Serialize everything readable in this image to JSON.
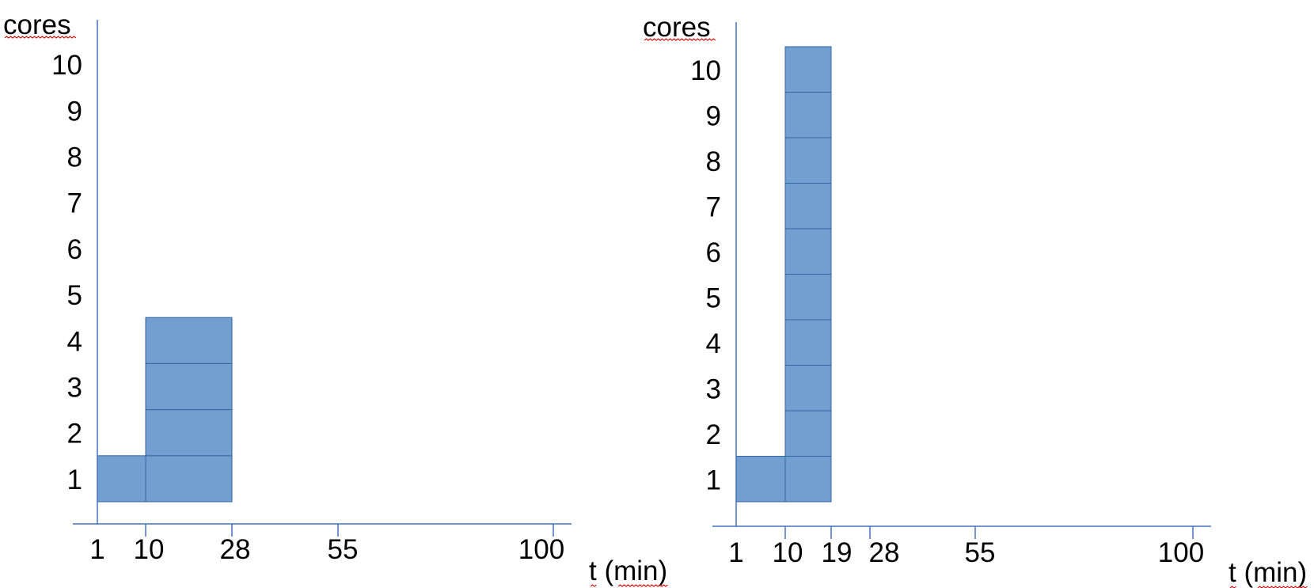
{
  "colors": {
    "axis": "#4472c4",
    "block_fill": "#729fcf",
    "block_stroke": "#3465a4",
    "text": "#000000",
    "spell_underline": "#cc0000"
  },
  "chart_data": [
    {
      "type": "diagram",
      "y_axis_title": "cores",
      "x_axis_title": "t (min)",
      "y_ticks": [
        "1",
        "2",
        "3",
        "4",
        "5",
        "6",
        "7",
        "8",
        "9",
        "10"
      ],
      "x_ticks": [
        "1",
        "10",
        "28",
        "55",
        "100"
      ],
      "blocks": [
        {
          "t_start": 1,
          "t_end": 10,
          "core_start": 0,
          "core_end": 1
        },
        {
          "t_start": 10,
          "t_end": 28,
          "core_start": 0,
          "core_end": 1
        },
        {
          "t_start": 10,
          "t_end": 28,
          "core_start": 1,
          "core_end": 2
        },
        {
          "t_start": 10,
          "t_end": 28,
          "core_start": 2,
          "core_end": 3
        },
        {
          "t_start": 10,
          "t_end": 28,
          "core_start": 3,
          "core_end": 4
        }
      ]
    },
    {
      "type": "diagram",
      "y_axis_title": "cores",
      "x_axis_title": "t (min)",
      "y_ticks": [
        "1",
        "2",
        "3",
        "4",
        "5",
        "6",
        "7",
        "8",
        "9",
        "10"
      ],
      "x_ticks": [
        "1",
        "10",
        "19",
        "28",
        "55",
        "100"
      ],
      "blocks": [
        {
          "t_start": 1,
          "t_end": 10,
          "core_start": 0,
          "core_end": 1
        },
        {
          "t_start": 10,
          "t_end": 19,
          "core_start": 0,
          "core_end": 1
        },
        {
          "t_start": 10,
          "t_end": 19,
          "core_start": 1,
          "core_end": 2
        },
        {
          "t_start": 10,
          "t_end": 19,
          "core_start": 2,
          "core_end": 3
        },
        {
          "t_start": 10,
          "t_end": 19,
          "core_start": 3,
          "core_end": 4
        },
        {
          "t_start": 10,
          "t_end": 19,
          "core_start": 4,
          "core_end": 5
        },
        {
          "t_start": 10,
          "t_end": 19,
          "core_start": 5,
          "core_end": 6
        },
        {
          "t_start": 10,
          "t_end": 19,
          "core_start": 6,
          "core_end": 7
        },
        {
          "t_start": 10,
          "t_end": 19,
          "core_start": 7,
          "core_end": 8
        },
        {
          "t_start": 10,
          "t_end": 19,
          "core_start": 8,
          "core_end": 9
        },
        {
          "t_start": 10,
          "t_end": 19,
          "core_start": 9,
          "core_end": 10
        }
      ]
    }
  ]
}
